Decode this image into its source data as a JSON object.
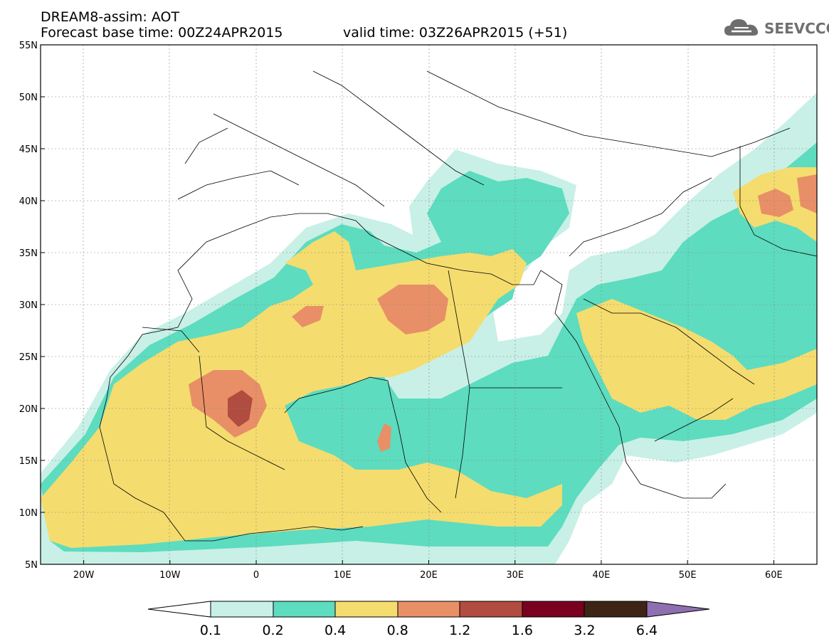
{
  "header": {
    "title": "DREAM8-assim: AOT",
    "forecast_base": "Forecast base time: 00Z24APR2015",
    "valid_time": "valid time: 03Z26APR2015 (+51)"
  },
  "logo": {
    "text": "SEEVCCC",
    "icon": "cloud-icon"
  },
  "map": {
    "lon_range": [
      -25,
      65
    ],
    "lat_range": [
      5,
      55
    ],
    "lat_ticks": [
      "5N",
      "10N",
      "15N",
      "20N",
      "25N",
      "30N",
      "35N",
      "40N",
      "45N",
      "50N",
      "55N"
    ],
    "lon_ticks": [
      "20W",
      "10W",
      "0",
      "10E",
      "20E",
      "30E",
      "40E",
      "50E",
      "60E"
    ],
    "grid": true
  },
  "colorbar": {
    "labels": [
      "0.1",
      "0.2",
      "0.4",
      "0.8",
      "1.2",
      "1.6",
      "3.2",
      "6.4"
    ],
    "colors": [
      "#ffffff",
      "#c8f0e6",
      "#5ddcbf",
      "#f5dc6e",
      "#e88f67",
      "#b04c40",
      "#7a0020",
      "#3d2415",
      "#8e6fb0"
    ]
  },
  "palette": {
    "c1": "#c8f0e6",
    "c2": "#5ddcbf",
    "c3": "#f5dc6e",
    "c4": "#e88f67",
    "c5": "#b04c40"
  }
}
